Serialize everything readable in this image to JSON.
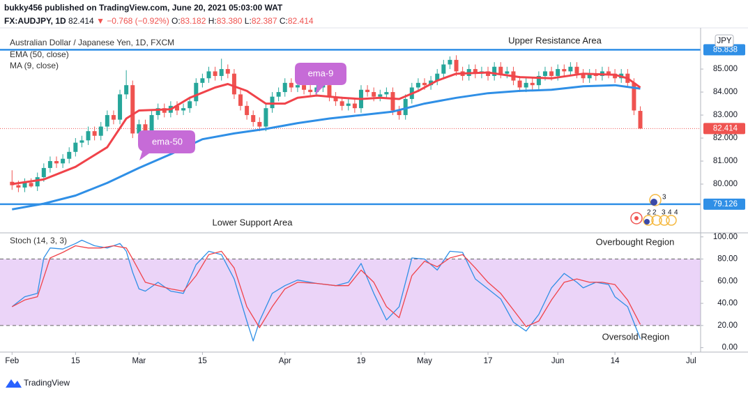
{
  "header": {
    "publisher": "bukky456 published on TradingView.com, June 20, 2021 05:03:00 WAT",
    "symbol": "FX:AUDJPY, 1D",
    "last": "82.414",
    "change": "▼ −0.768 (−0.92%)",
    "ohlc": [
      [
        "O:",
        "83.182"
      ],
      [
        "H:",
        "83.380"
      ],
      [
        "L:",
        "82.387"
      ],
      [
        "C:",
        "82.414"
      ]
    ]
  },
  "chart_data": [
    {
      "type": "candlestick",
      "title": "Australian Dollar / Japanese Yen, 1D, FXCM",
      "currency": "JPY",
      "up_color": "#26a69a",
      "down_color": "#ef5350",
      "open": [
        80.1,
        79.95,
        79.85,
        80.05,
        79.9,
        80.3,
        80.7,
        81.0,
        80.9,
        81.1,
        81.4,
        81.8,
        81.9,
        82.3,
        82.1,
        82.5,
        83.0,
        82.8,
        83.9,
        84.3,
        82.2,
        82.6,
        82.3,
        83.0,
        83.3,
        83.1,
        83.4,
        83.2,
        83.3,
        83.6,
        84.4,
        84.6,
        84.9,
        84.7,
        85.0,
        84.8,
        83.9,
        83.4,
        83.0,
        82.7,
        82.5,
        83.3,
        83.8,
        84.0,
        84.4,
        84.2,
        84.3,
        84.1,
        84.0,
        84.2,
        84.3,
        83.8,
        83.6,
        83.4,
        83.5,
        83.3,
        84.1,
        84.0,
        83.8,
        83.9,
        84.0,
        83.2,
        83.0,
        83.7,
        84.2,
        84.4,
        84.3,
        84.5,
        84.8,
        85.2,
        85.4,
        84.9,
        84.7,
        85.0,
        84.8,
        84.9,
        84.7,
        85.1,
        84.8,
        84.9,
        84.5,
        84.2,
        84.4,
        84.3,
        84.7,
        84.9,
        84.7,
        85.0,
        84.9,
        85.1,
        84.8,
        84.6,
        84.8,
        84.7,
        84.9,
        84.8,
        84.6,
        84.8,
        84.4,
        83.182
      ],
      "high": [
        80.6,
        80.15,
        80.25,
        80.25,
        80.5,
        80.9,
        81.2,
        81.2,
        81.3,
        81.6,
        82.0,
        82.1,
        82.5,
        82.5,
        82.7,
        83.2,
        83.2,
        84.1,
        84.95,
        84.5,
        82.8,
        82.8,
        83.2,
        83.5,
        83.5,
        83.6,
        83.6,
        83.5,
        83.8,
        84.6,
        84.8,
        85.1,
        85.1,
        85.45,
        85.2,
        85.0,
        84.1,
        83.6,
        83.2,
        82.9,
        83.5,
        84.0,
        84.2,
        84.6,
        84.6,
        84.5,
        84.5,
        84.3,
        84.4,
        84.5,
        84.5,
        84.0,
        83.8,
        83.7,
        83.7,
        84.3,
        84.3,
        84.2,
        84.1,
        84.2,
        84.2,
        83.4,
        83.9,
        84.4,
        84.6,
        84.6,
        84.7,
        85.0,
        85.4,
        85.55,
        85.6,
        85.1,
        85.2,
        85.2,
        85.1,
        85.1,
        85.3,
        85.3,
        85.1,
        85.1,
        84.7,
        84.6,
        84.6,
        84.9,
        85.1,
        85.1,
        85.2,
        85.2,
        85.3,
        85.3,
        85.0,
        85.0,
        85.0,
        85.1,
        85.1,
        85.0,
        85.0,
        85.0,
        84.6,
        83.38
      ],
      "low": [
        79.75,
        79.65,
        79.65,
        79.85,
        79.7,
        80.1,
        80.5,
        80.7,
        80.7,
        80.9,
        81.2,
        81.6,
        81.7,
        81.9,
        81.9,
        82.3,
        82.6,
        82.6,
        83.7,
        82.0,
        82.0,
        82.1,
        82.1,
        82.8,
        82.9,
        82.9,
        83.0,
        83.0,
        83.1,
        83.4,
        84.2,
        84.4,
        84.5,
        84.5,
        84.6,
        83.7,
        83.2,
        82.8,
        82.5,
        82.3,
        82.3,
        83.1,
        83.6,
        83.8,
        84.0,
        84.0,
        83.9,
        83.8,
        83.8,
        84.0,
        83.6,
        83.4,
        83.2,
        83.2,
        83.1,
        83.1,
        83.8,
        83.6,
        83.6,
        83.7,
        83.0,
        82.8,
        82.8,
        83.5,
        84.0,
        84.1,
        84.1,
        84.3,
        84.6,
        85.0,
        84.7,
        84.5,
        84.5,
        84.6,
        84.6,
        84.5,
        84.5,
        84.6,
        84.6,
        84.3,
        84.0,
        84.0,
        84.1,
        84.1,
        84.5,
        84.5,
        84.5,
        84.7,
        84.7,
        84.6,
        84.4,
        84.4,
        84.5,
        84.5,
        84.6,
        84.4,
        84.4,
        84.2,
        83.0,
        82.387
      ],
      "close": [
        79.95,
        79.85,
        80.05,
        79.9,
        80.3,
        80.7,
        81.0,
        80.9,
        81.1,
        81.4,
        81.8,
        81.9,
        82.3,
        82.1,
        82.5,
        83.0,
        82.8,
        83.9,
        84.3,
        82.2,
        82.6,
        82.3,
        83.0,
        83.3,
        83.1,
        83.4,
        83.2,
        83.3,
        83.6,
        84.4,
        84.6,
        84.9,
        84.7,
        85.0,
        84.8,
        83.9,
        83.4,
        83.0,
        82.7,
        82.5,
        83.3,
        83.8,
        84.0,
        84.4,
        84.2,
        84.3,
        84.1,
        84.0,
        84.2,
        84.3,
        83.8,
        83.6,
        83.4,
        83.5,
        83.3,
        84.1,
        84.0,
        83.8,
        83.9,
        84.0,
        83.2,
        83.0,
        83.7,
        84.2,
        84.4,
        84.3,
        84.5,
        84.8,
        85.2,
        85.4,
        84.9,
        84.7,
        85.0,
        84.8,
        84.9,
        84.7,
        85.1,
        84.8,
        84.9,
        84.5,
        84.2,
        84.4,
        84.3,
        84.7,
        84.9,
        84.7,
        85.0,
        84.9,
        85.1,
        84.8,
        84.6,
        84.8,
        84.7,
        84.9,
        84.8,
        84.6,
        84.8,
        84.4,
        83.2,
        82.414
      ],
      "xlim": [
        -1.9,
        108.5
      ],
      "xticks": [
        {
          "value": 0,
          "label": "Feb"
        },
        {
          "value": 10,
          "label": "15"
        },
        {
          "value": 20,
          "label": "Mar"
        },
        {
          "value": 30,
          "label": "15"
        },
        {
          "value": 43,
          "label": "Apr"
        },
        {
          "value": 55,
          "label": "19"
        },
        {
          "value": 65,
          "label": "May"
        },
        {
          "value": 75,
          "label": "17"
        },
        {
          "value": 86,
          "label": "Jun"
        },
        {
          "value": 95,
          "label": "14"
        },
        {
          "value": 107,
          "label": "Jul"
        }
      ],
      "ylim": [
        77.91,
        86.79
      ],
      "yticks": [
        {
          "value": 80,
          "label": "80.000"
        },
        {
          "value": 81,
          "label": "81.000"
        },
        {
          "value": 82,
          "label": "82.000"
        },
        {
          "value": 83,
          "label": "83.000"
        },
        {
          "value": 84,
          "label": "84.000"
        },
        {
          "value": 85,
          "label": "85.000"
        }
      ],
      "indicators": [
        {
          "name": "EMA (50, close)",
          "color": "#2f8fe6",
          "x": [
            0,
            5,
            10,
            15,
            20,
            25,
            30,
            35,
            40,
            45,
            50,
            55,
            60,
            65,
            70,
            75,
            80,
            85,
            90,
            95,
            99
          ],
          "values": [
            78.9,
            79.15,
            79.5,
            80.05,
            80.7,
            81.3,
            81.95,
            82.2,
            82.4,
            82.65,
            82.85,
            83.0,
            83.15,
            83.5,
            83.75,
            83.95,
            84.05,
            84.1,
            84.25,
            84.3,
            84.15
          ]
        },
        {
          "name": "MA (9, close)",
          "color": "#f0434a",
          "x": [
            0,
            5,
            10,
            15,
            18,
            20,
            25,
            28,
            32,
            34,
            37,
            40,
            43,
            45,
            48,
            52,
            55,
            58,
            61,
            64,
            67,
            70,
            75,
            80,
            85,
            90,
            95,
            97,
            99
          ],
          "values": [
            80.0,
            80.2,
            80.75,
            81.6,
            82.85,
            83.2,
            83.25,
            83.75,
            84.2,
            84.35,
            84.05,
            83.5,
            83.5,
            83.75,
            83.85,
            83.75,
            83.7,
            83.75,
            83.7,
            84.05,
            84.5,
            84.8,
            84.85,
            84.65,
            84.6,
            84.8,
            84.75,
            84.6,
            84.2
          ]
        }
      ],
      "price_lines": [
        {
          "value": 85.838,
          "label": "85.838",
          "color": "#2f8fe6",
          "style": "solid"
        },
        {
          "value": 82.414,
          "label": "82.414",
          "color": "#ef5350",
          "style": "dotted"
        },
        {
          "value": 79.126,
          "label": "79.126",
          "color": "#2f8fe6",
          "style": "solid"
        }
      ],
      "annotations": [
        "Upper Resistance Area",
        "Lower Support Area"
      ],
      "bubbles": [
        "ema-9",
        "ema-50"
      ],
      "event_labels": [
        "3",
        "2",
        "2",
        "3",
        "4",
        "4"
      ]
    },
    {
      "type": "line",
      "title": "Stoch (14, 3, 3)",
      "xlim": [
        -1.9,
        108.5
      ],
      "ylim": [
        -4,
        103
      ],
      "yticks": [
        {
          "value": 0,
          "label": "0.00"
        },
        {
          "value": 20,
          "label": "20.00"
        },
        {
          "value": 40,
          "label": "40.00"
        },
        {
          "value": 60,
          "label": "60.00"
        },
        {
          "value": 80,
          "label": "80.00"
        },
        {
          "value": 100,
          "label": "100.00"
        }
      ],
      "band": [
        20,
        80
      ],
      "band_color": "#e4c6f5",
      "annotations": [
        "Overbought Region",
        "Oversold Region"
      ],
      "series": [
        {
          "color": "#2f8fe6",
          "x": [
            0,
            2,
            4,
            5,
            6,
            8,
            10,
            11,
            13,
            15,
            17,
            18,
            19,
            20,
            21,
            23,
            25,
            27,
            29,
            31,
            33,
            35,
            37,
            38,
            39,
            41,
            43,
            45,
            48,
            51,
            53,
            55,
            57,
            59,
            61,
            63,
            65,
            67,
            69,
            71,
            73,
            75,
            77,
            79,
            81,
            83,
            85,
            87,
            89,
            90,
            92,
            94,
            95,
            97,
            99
          ],
          "values": [
            37,
            46,
            49,
            81,
            90,
            89,
            94,
            97,
            92,
            90,
            94,
            87,
            68,
            53,
            51,
            59,
            51,
            49,
            75,
            87,
            84,
            62,
            24,
            6,
            24,
            49,
            56,
            61,
            58,
            56,
            59,
            76,
            49,
            25,
            37,
            81,
            80,
            70,
            87,
            86,
            62,
            53,
            44,
            23,
            15,
            30,
            54,
            67,
            59,
            54,
            59,
            57,
            46,
            37,
            8
          ]
        },
        {
          "color": "#f0434a",
          "x": [
            0,
            2,
            4,
            6,
            8,
            10,
            12,
            14,
            16,
            18,
            19,
            21,
            23,
            25,
            27,
            29,
            31,
            33,
            35,
            37,
            39,
            41,
            43,
            45,
            48,
            51,
            53,
            55,
            57,
            59,
            61,
            63,
            65,
            67,
            69,
            71,
            73,
            75,
            77,
            79,
            81,
            83,
            85,
            87,
            89,
            91,
            93,
            95,
            97,
            99
          ],
          "values": [
            37,
            43,
            46,
            81,
            86,
            92,
            90,
            90,
            92,
            90,
            80,
            59,
            56,
            53,
            51,
            65,
            84,
            87,
            72,
            37,
            18,
            37,
            53,
            59,
            58,
            56,
            56,
            70,
            59,
            37,
            27,
            65,
            78,
            73,
            81,
            84,
            72,
            59,
            49,
            34,
            19,
            24,
            43,
            59,
            62,
            59,
            59,
            57,
            43,
            21
          ]
        }
      ]
    }
  ],
  "footer": "TradingView"
}
